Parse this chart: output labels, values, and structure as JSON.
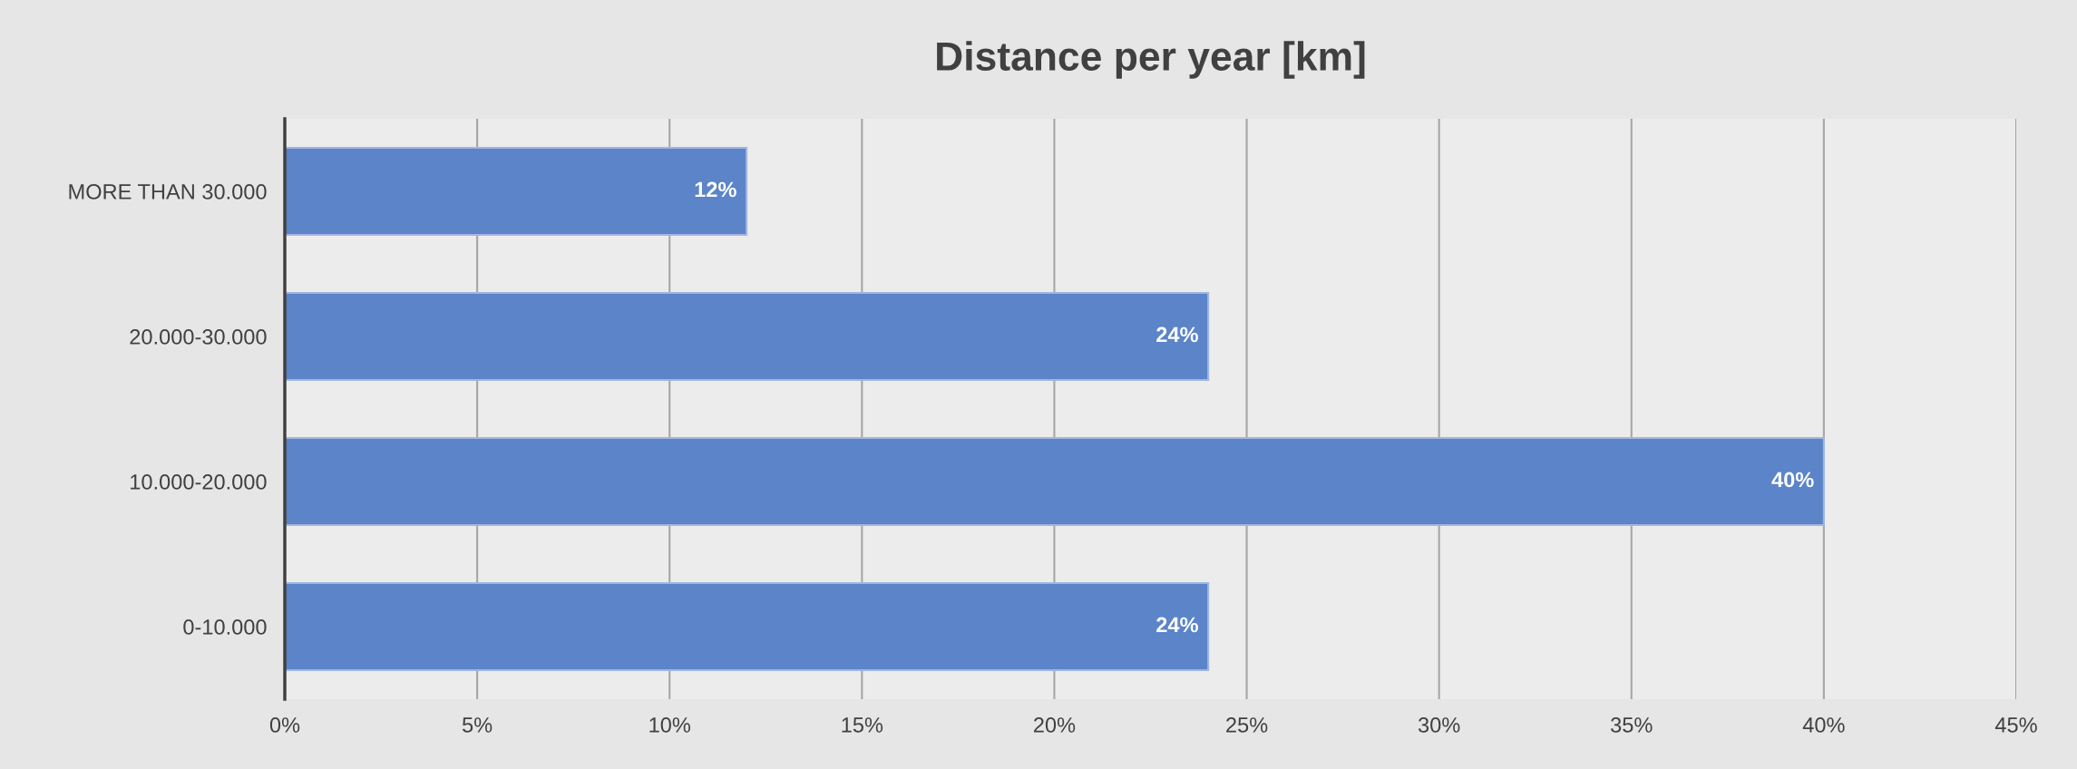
{
  "chart_data": {
    "type": "bar",
    "orientation": "horizontal",
    "title": "Distance per year [km]",
    "categories": [
      "MORE THAN 30.000",
      "20.000-30.000",
      "10.000-20.000",
      "0-10.000"
    ],
    "values": [
      12,
      24,
      40,
      24
    ],
    "value_labels": [
      "12%",
      "24%",
      "40%",
      "24%"
    ],
    "color": "#5b84c9",
    "xlim": [
      0,
      45
    ],
    "xticks": [
      {
        "value": 0,
        "label": "0%"
      },
      {
        "value": 5,
        "label": "5%"
      },
      {
        "value": 10,
        "label": "10%"
      },
      {
        "value": 15,
        "label": "15%"
      },
      {
        "value": 20,
        "label": "20%"
      },
      {
        "value": 25,
        "label": "25%"
      },
      {
        "value": 30,
        "label": "30%"
      },
      {
        "value": 35,
        "label": "35%"
      },
      {
        "value": 40,
        "label": "40%"
      },
      {
        "value": 45,
        "label": "45%"
      }
    ],
    "grid": "x"
  }
}
